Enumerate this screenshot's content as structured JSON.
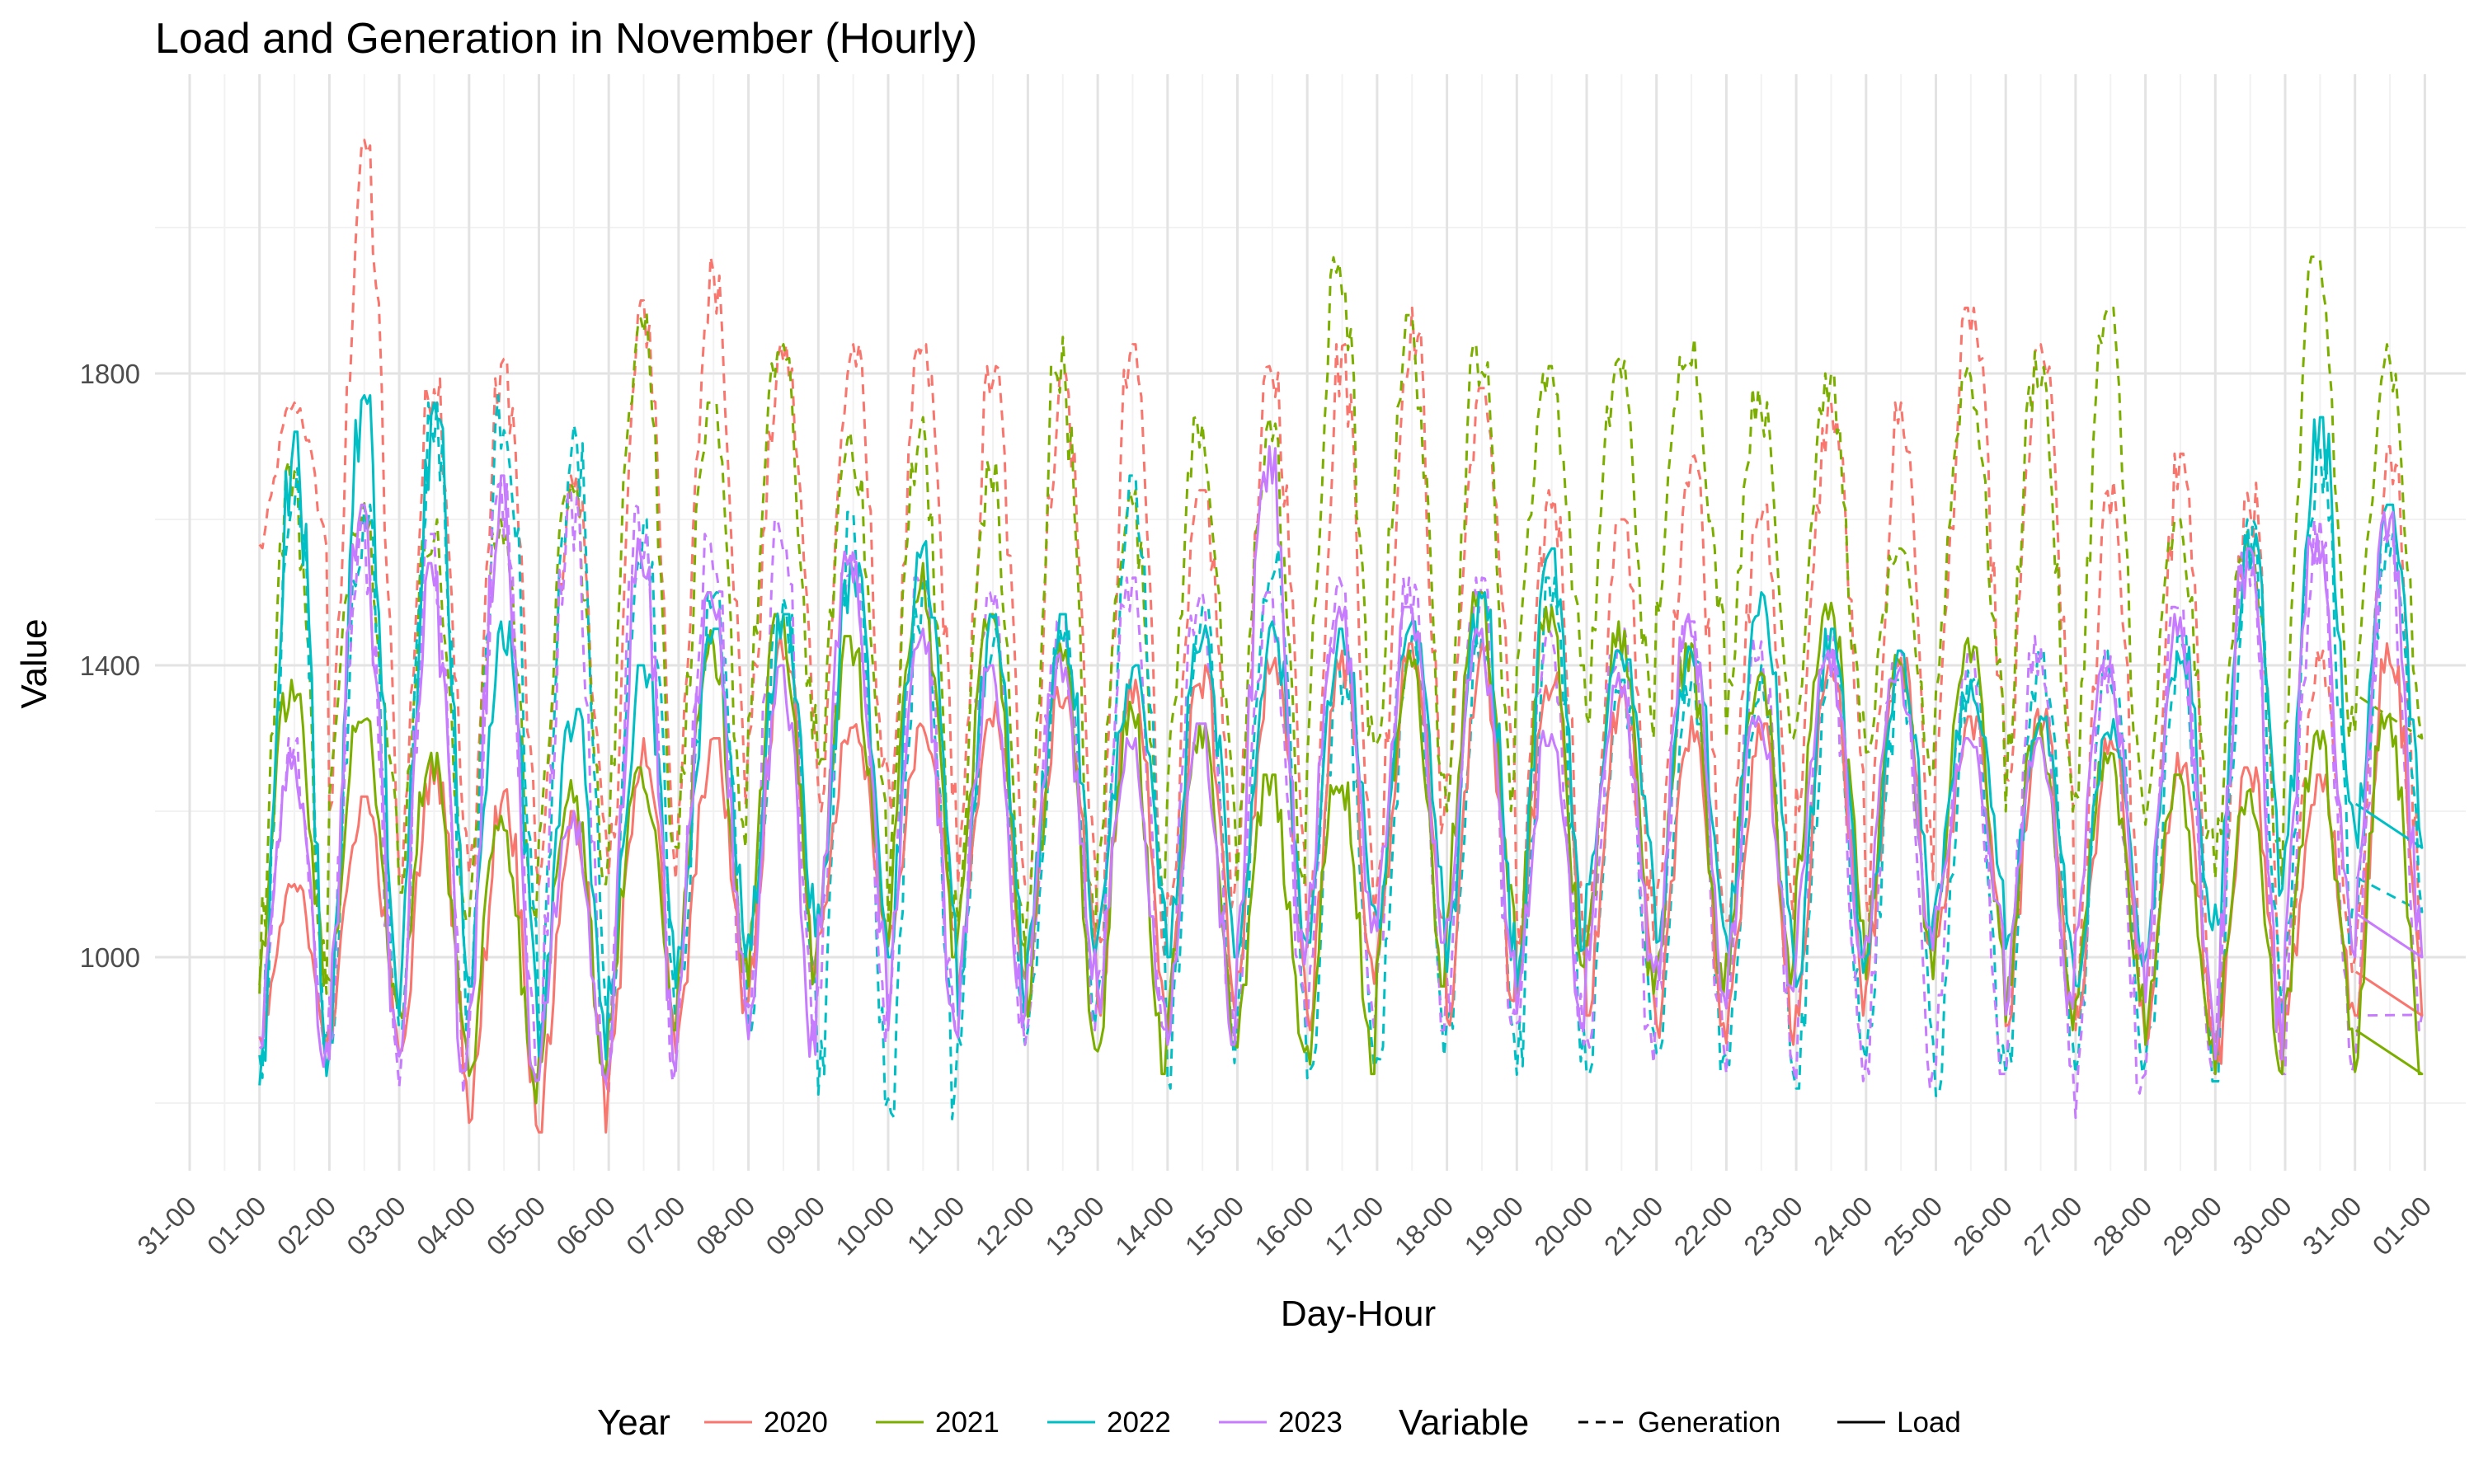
{
  "chart_data": {
    "type": "line",
    "title": "Load and Generation in November (Hourly)",
    "xlabel": "Day-Hour",
    "ylabel": "Value",
    "x_tick_labels": [
      "31-00",
      "01-00",
      "02-00",
      "03-00",
      "04-00",
      "05-00",
      "06-00",
      "07-00",
      "08-00",
      "09-00",
      "10-00",
      "11-00",
      "12-00",
      "13-00",
      "14-00",
      "15-00",
      "16-00",
      "17-00",
      "18-00",
      "19-00",
      "20-00",
      "21-00",
      "22-00",
      "23-00",
      "24-00",
      "25-00",
      "26-00",
      "27-00",
      "28-00",
      "29-00",
      "30-00",
      "31-00",
      "01-00"
    ],
    "y_ticks": [
      1000,
      1400,
      1800
    ],
    "ylim": [
      700,
      2150
    ],
    "grid": true,
    "legend_position": "bottom",
    "legend": {
      "year_title": "Year",
      "years": [
        "2020",
        "2021",
        "2022",
        "2023"
      ],
      "variable_title": "Variable",
      "variables": [
        "Generation",
        "Load"
      ]
    },
    "colors": {
      "2020": "#F8766D",
      "2021": "#7CAE00",
      "2022": "#00BFC4",
      "2023": "#C77CFF"
    },
    "daily_values_note_free": true,
    "series": [
      {
        "year": "2020",
        "variable": "Load",
        "daily_min": [
          880,
          900,
          830,
          770,
          760,
          830,
          900,
          940,
          1030,
          1010,
          950,
          1000,
          920,
          900,
          980,
          900,
          1000,
          870,
          990,
          920,
          870,
          880,
          920,
          960,
          1010,
          890,
          900,
          870,
          840,
          920,
          920
        ],
        "daily_max": [
          1100,
          1220,
          1270,
          1230,
          1200,
          1300,
          1300,
          1440,
          1330,
          1320,
          1350,
          1370,
          1380,
          1400,
          1410,
          1420,
          1430,
          1430,
          1390,
          1370,
          1330,
          1320,
          1400,
          1410,
          1330,
          1340,
          1300,
          1280,
          1260,
          1250,
          1430
        ]
      },
      {
        "year": "2020",
        "variable": "Generation",
        "daily_min": [
          1560,
          1200,
          1100,
          1100,
          1100,
          1100,
          1200,
          1300,
          1200,
          1200,
          1100,
          1100,
          1000,
          1050,
          1150,
          1000,
          1100,
          1250,
          1000,
          1000,
          1050,
          1050,
          1200,
          1050,
          1300,
          1200,
          900,
          900,
          850,
          980,
          1000
        ],
        "daily_max": [
          1760,
          2120,
          1810,
          1820,
          1660,
          1900,
          1960,
          1840,
          1840,
          1840,
          1810,
          1800,
          1840,
          1640,
          1810,
          1840,
          1890,
          1780,
          1640,
          1600,
          1700,
          1620,
          1760,
          1760,
          1890,
          1840,
          1660,
          1690,
          1650,
          1420,
          1700
        ]
      },
      {
        "year": "2021",
        "variable": "Load",
        "daily_min": [
          960,
          940,
          880,
          800,
          830,
          900,
          980,
          960,
          1050,
          1000,
          1000,
          870,
          840,
          880,
          870,
          840,
          960,
          1050,
          950,
          950,
          940,
          960,
          1050,
          970,
          1010,
          900,
          940,
          880,
          840,
          900,
          840
        ],
        "daily_max": [
          1380,
          1340,
          1280,
          1200,
          1250,
          1260,
          1450,
          1470,
          1440,
          1540,
          1470,
          1430,
          1350,
          1320,
          1250,
          1260,
          1420,
          1500,
          1480,
          1460,
          1430,
          1390,
          1500,
          1420,
          1450,
          1320,
          1280,
          1250,
          1230,
          1310,
          1350
        ]
      },
      {
        "year": "2021",
        "variable": "Generation",
        "daily_min": [
          950,
          1200,
          1050,
          1050,
          1100,
          1150,
          1150,
          1300,
          1200,
          1050,
          1000,
          1000,
          1100,
          1200,
          1100,
          1250,
          1250,
          1200,
          1400,
          1300,
          1450,
          1300,
          1300,
          1250,
          1350,
          1200,
          1200,
          1150,
          1100,
          1300,
          1300
        ],
        "daily_max": [
          1680,
          1630,
          1600,
          1600,
          1650,
          1920,
          1760,
          1840,
          1720,
          1740,
          1680,
          1850,
          1640,
          1740,
          1740,
          1960,
          1880,
          1840,
          1810,
          1820,
          1850,
          1780,
          1800,
          1560,
          1810,
          1830,
          1890,
          1600,
          1600,
          1960,
          1840
        ]
      },
      {
        "year": "2022",
        "variable": "Load",
        "daily_min": [
          820,
          870,
          920,
          960,
          860,
          950,
          1000,
          1010,
          1040,
          1000,
          920,
          1000,
          1030,
          1000,
          1000,
          1020,
          1040,
          980,
          960,
          1100,
          1020,
          1000,
          950,
          1000,
          1080,
          1000,
          960,
          1000,
          1040,
          1150,
          1150
        ],
        "daily_max": [
          1720,
          1770,
          1760,
          1460,
          1340,
          1400,
          1450,
          1470,
          1540,
          1570,
          1470,
          1470,
          1400,
          1460,
          1460,
          1450,
          1460,
          1500,
          1560,
          1420,
          1440,
          1500,
          1450,
          1420,
          1380,
          1330,
          1330,
          1440,
          1580,
          1740,
          1620
        ]
      },
      {
        "year": "2022",
        "variable": "Generation",
        "daily_min": [
          820,
          880,
          900,
          960,
          870,
          900,
          950,
          900,
          790,
          740,
          880,
          900,
          950,
          820,
          920,
          790,
          860,
          880,
          830,
          840,
          830,
          840,
          820,
          860,
          810,
          840,
          840,
          830,
          830,
          1000,
          1050
        ],
        "daily_max": [
          1670,
          1620,
          1760,
          1770,
          1730,
          1600,
          1500,
          1500,
          1610,
          1520,
          1450,
          1450,
          1660,
          1480,
          1560,
          1400,
          1440,
          1440,
          1520,
          1380,
          1380,
          1400,
          1400,
          1380,
          1400,
          1420,
          1420,
          1440,
          1600,
          1700,
          1580
        ]
      },
      {
        "year": "2023",
        "variable": "Load",
        "daily_min": [
          850,
          860,
          790,
          830,
          830,
          790,
          930,
          850,
          1000,
          900,
          890,
          970,
          910,
          880,
          990,
          1020,
          1020,
          1000,
          900,
          980,
          950,
          930,
          1000,
          990,
          1040,
          920,
          1000,
          920,
          860,
          1000,
          1000
        ],
        "daily_max": [
          1280,
          1620,
          1540,
          1660,
          1200,
          1600,
          1500,
          1400,
          1560,
          1450,
          1400,
          1420,
          1300,
          1320,
          1700,
          1480,
          1480,
          1450,
          1310,
          1400,
          1470,
          1330,
          1420,
          1400,
          1300,
          1300,
          1400,
          1470,
          1560,
          1600,
          1610
        ]
      },
      {
        "year": "2023",
        "variable": "Generation",
        "daily_min": [
          840,
          850,
          800,
          830,
          830,
          790,
          900,
          860,
          880,
          900,
          880,
          900,
          900,
          880,
          900,
          900,
          900,
          900,
          880,
          820,
          880,
          840,
          830,
          820,
          840,
          840,
          780,
          840,
          840,
          840,
          860
        ],
        "daily_max": [
          1300,
          1600,
          1580,
          1650,
          1640,
          1620,
          1580,
          1600,
          1560,
          1520,
          1500,
          1460,
          1520,
          1500,
          1500,
          1520,
          1520,
          1520,
          1450,
          1450,
          1460,
          1440,
          1440,
          1420,
          1420,
          1440,
          1420,
          1480,
          1560,
          1600,
          1580
        ]
      }
    ]
  }
}
